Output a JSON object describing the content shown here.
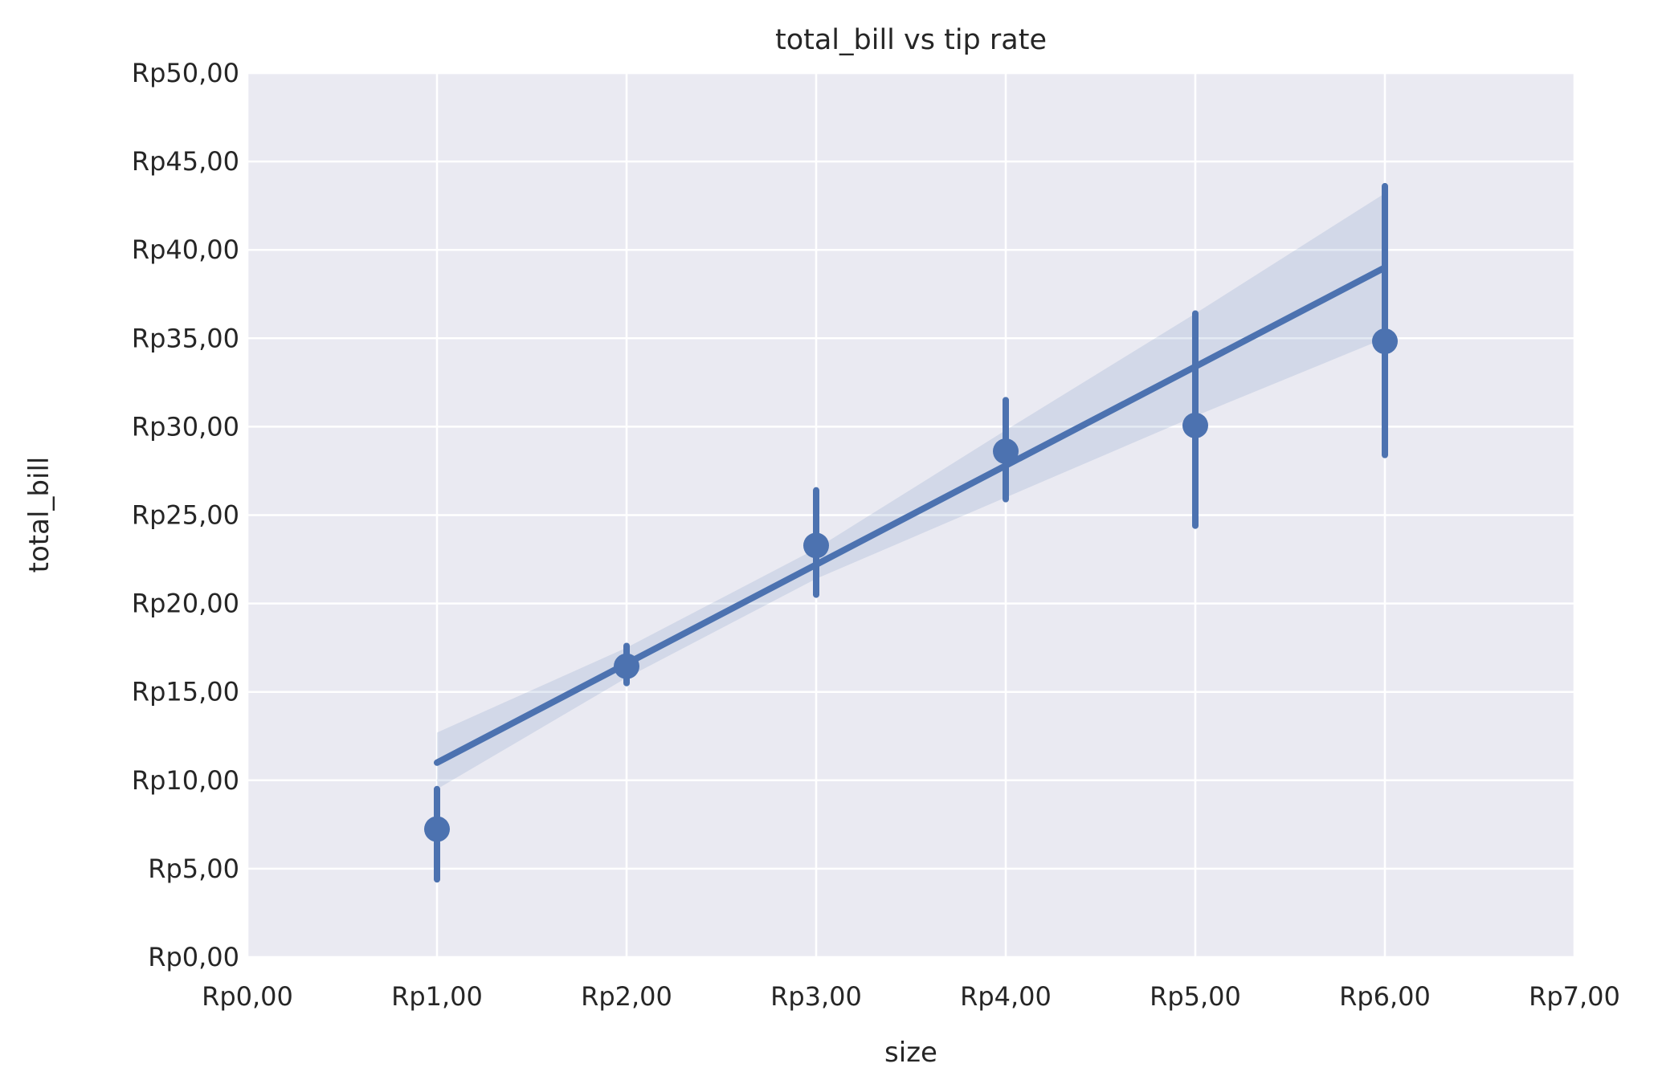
{
  "chart_data": {
    "type": "scatter",
    "title": "total_bill vs tip rate",
    "xlabel": "size",
    "ylabel": "total_bill",
    "xlim": [
      0,
      7
    ],
    "ylim": [
      0,
      50
    ],
    "x_ticks": [
      0,
      1,
      2,
      3,
      4,
      5,
      6,
      7
    ],
    "y_ticks": [
      0,
      5,
      10,
      15,
      20,
      25,
      30,
      35,
      40,
      45,
      50
    ],
    "x_tick_labels": [
      "Rp0,00",
      "Rp1,00",
      "Rp2,00",
      "Rp3,00",
      "Rp4,00",
      "Rp5,00",
      "Rp6,00",
      "Rp7,00"
    ],
    "y_tick_labels": [
      "Rp0,00",
      "Rp5,00",
      "Rp10,00",
      "Rp15,00",
      "Rp20,00",
      "Rp25,00",
      "Rp30,00",
      "Rp35,00",
      "Rp40,00",
      "Rp45,00",
      "Rp50,00"
    ],
    "grid": true,
    "points": [
      {
        "x": 1,
        "y": 7.24,
        "ci": [
          4.4,
          9.5
        ]
      },
      {
        "x": 2,
        "y": 16.45,
        "ci": [
          15.5,
          17.6
        ]
      },
      {
        "x": 3,
        "y": 23.28,
        "ci": [
          20.5,
          26.4
        ]
      },
      {
        "x": 4,
        "y": 28.61,
        "ci": [
          25.9,
          31.5
        ]
      },
      {
        "x": 5,
        "y": 30.07,
        "ci": [
          24.4,
          36.4
        ]
      },
      {
        "x": 6,
        "y": 34.83,
        "ci": [
          28.4,
          43.6
        ]
      }
    ],
    "regression": {
      "x": [
        1,
        2,
        3,
        4,
        5,
        6
      ],
      "y": [
        11.0,
        16.6,
        22.2,
        27.8,
        33.4,
        39.0
      ],
      "band_lower": [
        9.5,
        15.8,
        21.4,
        26.0,
        30.6,
        35.0
      ],
      "band_upper": [
        12.7,
        17.5,
        23.1,
        29.8,
        36.4,
        43.2
      ]
    },
    "colors": {
      "line": "#4c72b0",
      "band": "#4c72b0",
      "plot_background": "#eaeaf2",
      "grid": "#ffffff"
    }
  }
}
